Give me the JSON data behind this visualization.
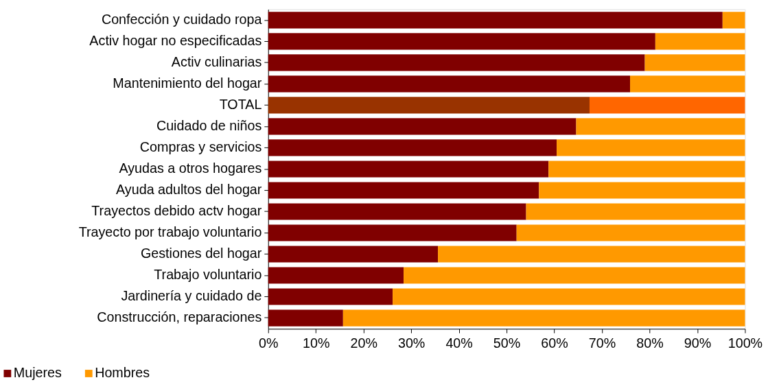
{
  "chart_data": {
    "type": "bar",
    "orientation": "horizontal",
    "stacked": true,
    "categories": [
      "Confección y cuidado ropa",
      "Activ hogar no especificadas",
      "Activ culinarias",
      "Mantenimiento del hogar",
      "TOTAL",
      "Cuidado de niños",
      "Compras y servicios",
      "Ayudas a otros hogares",
      "Ayuda adultos del hogar",
      "Trayectos debido actv hogar",
      "Trayecto por trabajo voluntario",
      "Gestiones del hogar",
      "Trabajo voluntario",
      "Jardinería y cuidado de",
      "Construcción, reparaciones"
    ],
    "series": [
      {
        "name": "Mujeres",
        "color": "#800000",
        "colors": [
          "#800000",
          "#800000",
          "#800000",
          "#800000",
          "#993300",
          "#800000",
          "#800000",
          "#800000",
          "#800000",
          "#800000",
          "#800000",
          "#800000",
          "#800000",
          "#800000",
          "#800000"
        ],
        "values": [
          95.3,
          81.2,
          79.0,
          75.9,
          67.4,
          64.6,
          60.5,
          58.8,
          56.8,
          54.1,
          52.1,
          35.6,
          28.4,
          26.1,
          15.7
        ]
      },
      {
        "name": "Hombres",
        "color": "#ff9900",
        "colors": [
          "#ff9900",
          "#ff9900",
          "#ff9900",
          "#ff9900",
          "#ff6600",
          "#ff9900",
          "#ff9900",
          "#ff9900",
          "#ff9900",
          "#ff9900",
          "#ff9900",
          "#ff9900",
          "#ff9900",
          "#ff9900",
          "#ff9900"
        ],
        "values": [
          4.7,
          18.8,
          21.0,
          24.1,
          32.6,
          35.4,
          39.5,
          41.2,
          43.2,
          45.9,
          47.9,
          64.4,
          71.6,
          73.9,
          84.3
        ]
      }
    ],
    "xlim": [
      0,
      100
    ],
    "xticks": [
      {
        "value": 0,
        "label": "0%"
      },
      {
        "value": 10,
        "label": "10%"
      },
      {
        "value": 20,
        "label": "20%"
      },
      {
        "value": 30,
        "label": "30%"
      },
      {
        "value": 40,
        "label": "40%"
      },
      {
        "value": 50,
        "label": "50%"
      },
      {
        "value": 60,
        "label": "60%"
      },
      {
        "value": 70,
        "label": "70%"
      },
      {
        "value": 80,
        "label": "80%"
      },
      {
        "value": 90,
        "label": "90%"
      },
      {
        "value": 100,
        "label": "100%"
      }
    ],
    "grid": false,
    "legend": "bottom left"
  }
}
